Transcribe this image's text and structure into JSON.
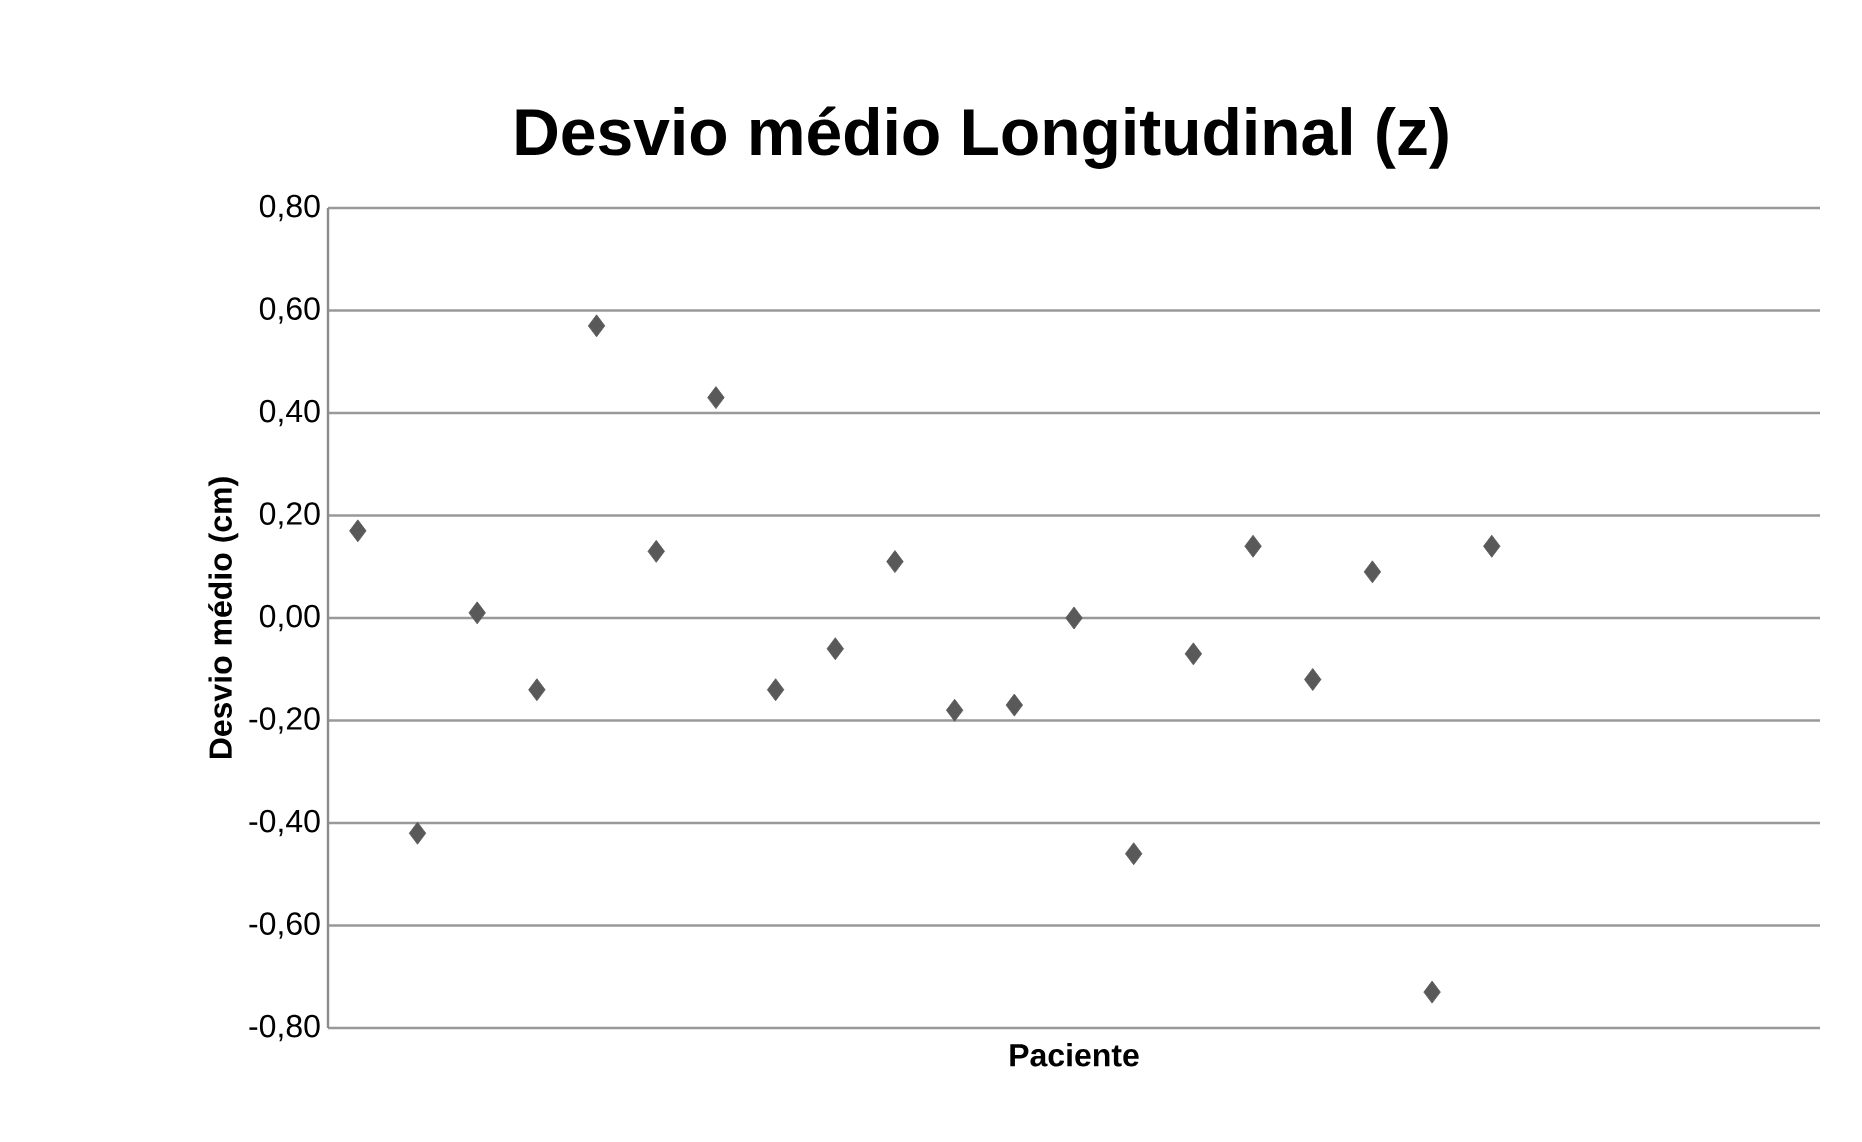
{
  "chart_data": {
    "type": "scatter",
    "title": "Desvio médio Longitudinal (z)",
    "xlabel": "Paciente",
    "ylabel": "Desvio médio (cm)",
    "categories": [
      null,
      null,
      null,
      null,
      null,
      null,
      null,
      null,
      null,
      null,
      null,
      null,
      null,
      null,
      null,
      null,
      null,
      null,
      null,
      null,
      null,
      null,
      null,
      null,
      null
    ],
    "values": [
      0.17,
      -0.42,
      0.01,
      -0.14,
      0.57,
      0.13,
      0.43,
      -0.14,
      -0.06,
      0.11,
      -0.18,
      -0.17,
      0.0,
      -0.46,
      -0.07,
      0.14,
      -0.12,
      0.09,
      -0.73,
      0.14,
      null,
      null,
      null,
      null,
      null
    ],
    "color": "#595959",
    "marker": "diamond",
    "grid": "y",
    "legend": false,
    "tick_labels": "y",
    "ylim": [
      -0.8,
      0.8
    ],
    "yticks": [
      {
        "value": -0.8,
        "label": "-0,80"
      },
      {
        "value": -0.6,
        "label": "-0,60"
      },
      {
        "value": -0.4,
        "label": "-0,40"
      },
      {
        "value": -0.2,
        "label": "-0,20"
      },
      {
        "value": 0.0,
        "label": "0,00"
      },
      {
        "value": 0.2,
        "label": "0,20"
      },
      {
        "value": 0.4,
        "label": "0,40"
      },
      {
        "value": 0.6,
        "label": "0,60"
      },
      {
        "value": 0.8,
        "label": "0,80"
      }
    ]
  }
}
